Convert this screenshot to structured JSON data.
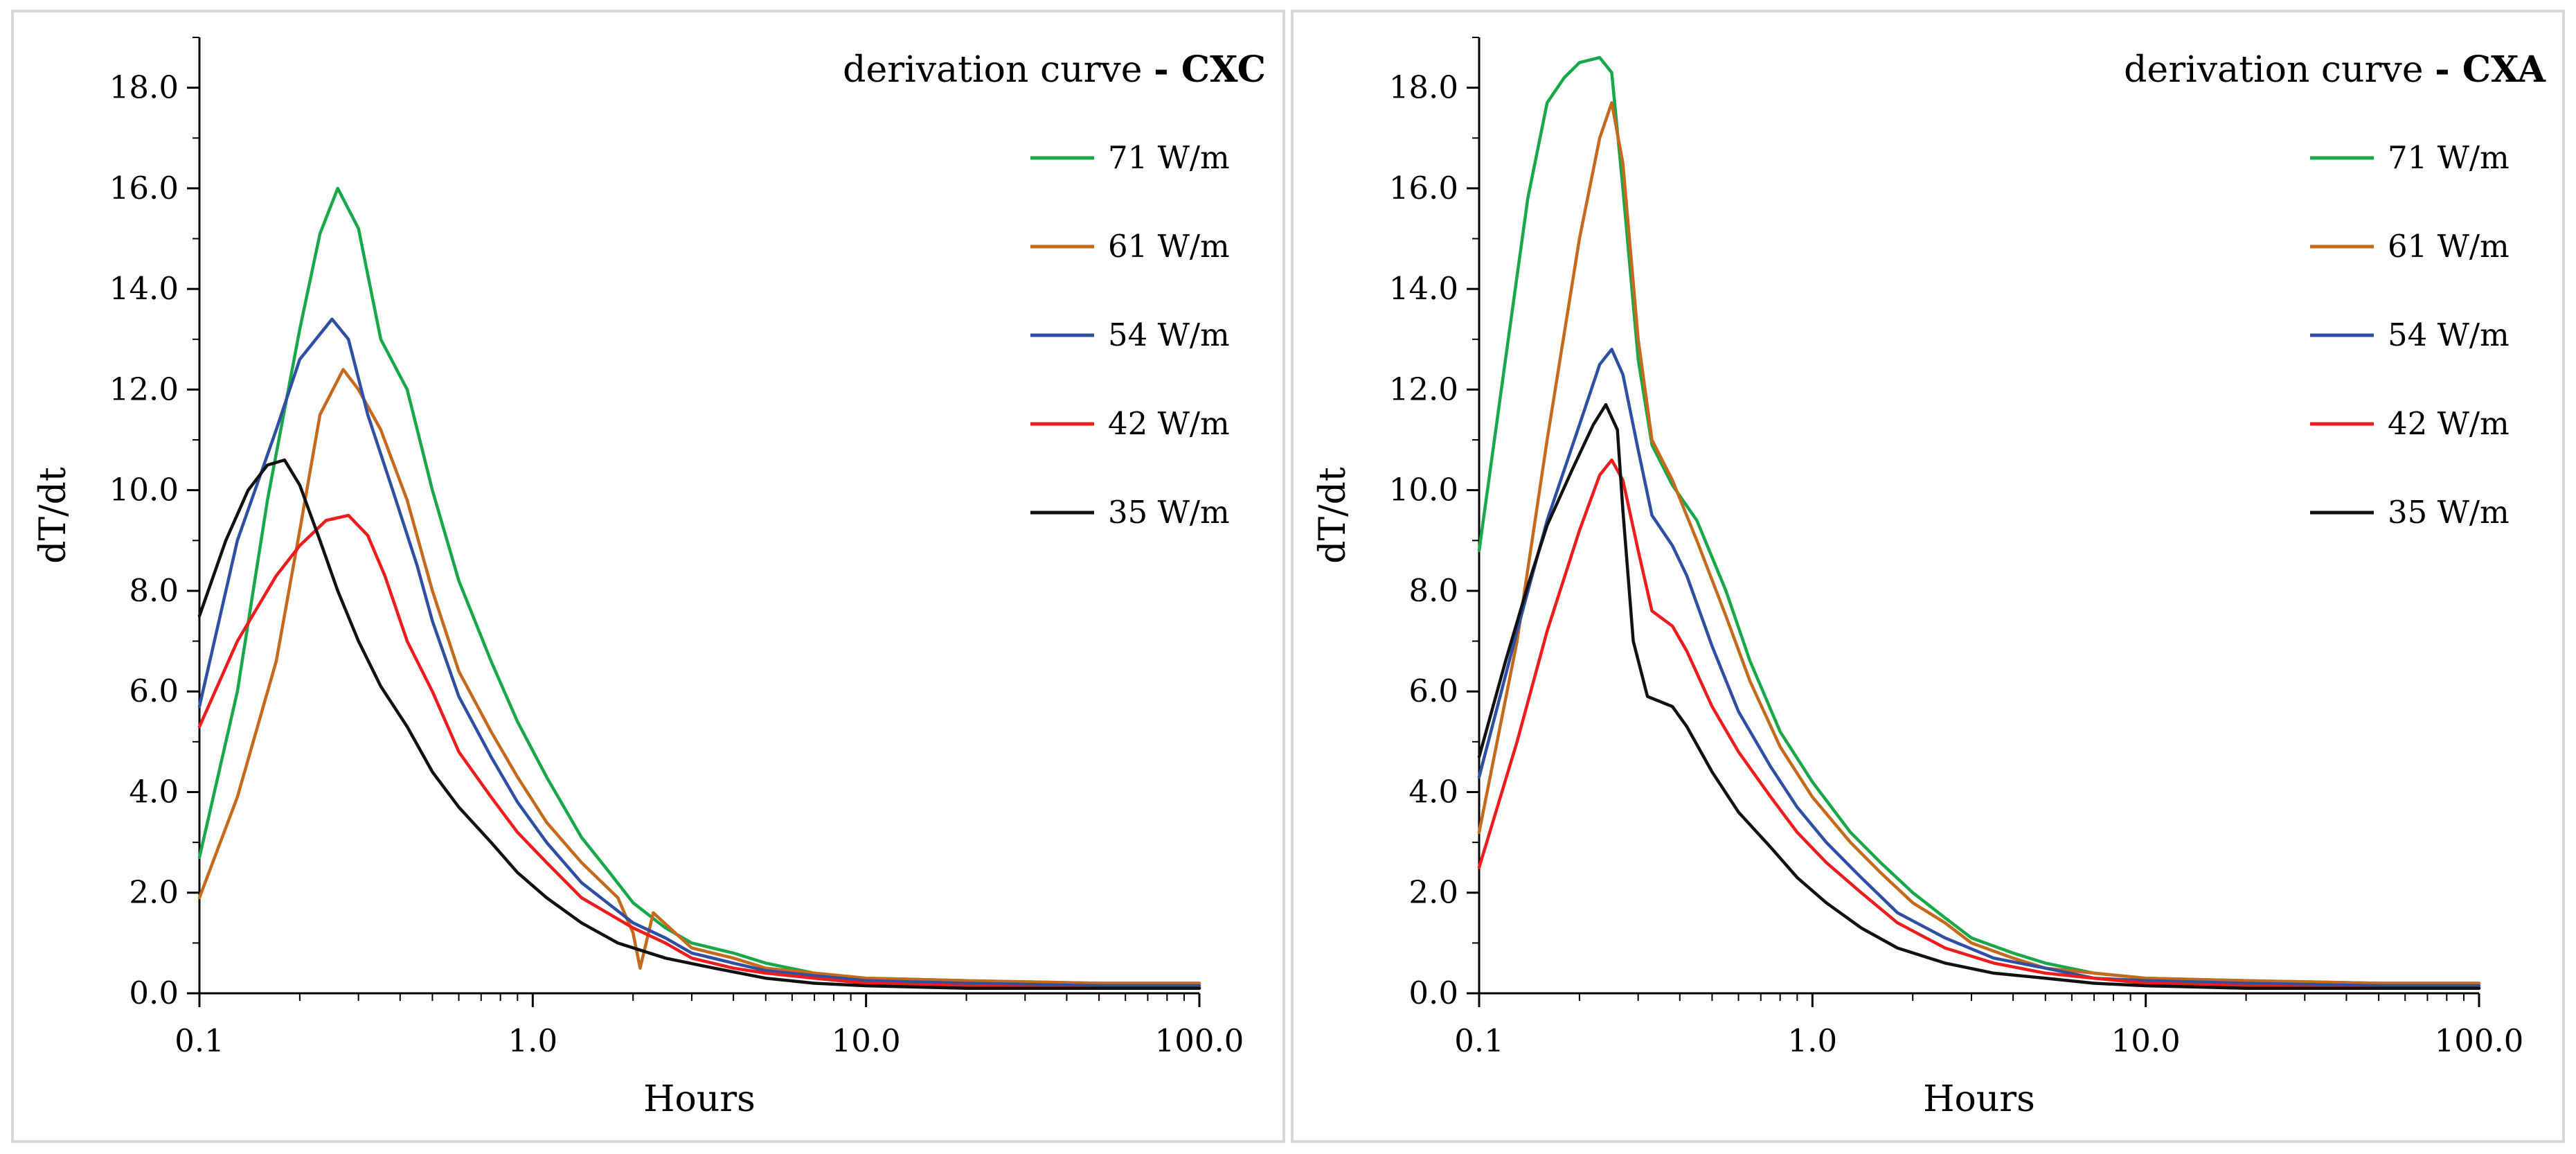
{
  "chart_data": [
    {
      "type": "line",
      "xscale": "log",
      "title": "derivation curve",
      "title_suffix": "- CXC",
      "xlabel": "Hours",
      "ylabel": "dT/dt",
      "xlim": [
        0.1,
        100
      ],
      "ylim": [
        0,
        19
      ],
      "x_ticks": [
        0.1,
        1,
        10,
        100
      ],
      "x_tick_labels": [
        "0.1",
        "1.0",
        "10.0",
        "100.0"
      ],
      "y_ticks": [
        0,
        2,
        4,
        6,
        8,
        10,
        12,
        14,
        16,
        18
      ],
      "y_tick_labels": [
        "0.0",
        "2.0",
        "4.0",
        "6.0",
        "8.0",
        "10.0",
        "12.0",
        "14.0",
        "16.0",
        "18.0"
      ],
      "series": [
        {
          "name": "71 W/m",
          "color": "#18a84a",
          "x": [
            0.1,
            0.13,
            0.16,
            0.2,
            0.23,
            0.26,
            0.3,
            0.35,
            0.42,
            0.5,
            0.6,
            0.75,
            0.9,
            1.1,
            1.4,
            1.7,
            2.0,
            2.5,
            3.0,
            4.0,
            5.0,
            7.0,
            10.0,
            20.0,
            50.0,
            100.0
          ],
          "y": [
            2.7,
            6.0,
            9.8,
            13.2,
            15.1,
            16.0,
            15.2,
            13.0,
            12.0,
            10.0,
            8.2,
            6.6,
            5.4,
            4.3,
            3.1,
            2.4,
            1.8,
            1.3,
            1.0,
            0.8,
            0.6,
            0.4,
            0.3,
            0.25,
            0.2,
            0.2
          ]
        },
        {
          "name": "61 W/m",
          "color": "#c56a1c",
          "x": [
            0.1,
            0.13,
            0.17,
            0.2,
            0.23,
            0.27,
            0.3,
            0.35,
            0.42,
            0.5,
            0.6,
            0.75,
            0.9,
            1.1,
            1.4,
            1.8,
            2.0,
            2.1,
            2.3,
            3.0,
            4.0,
            5.0,
            7.0,
            10.0,
            20.0,
            50.0,
            100.0
          ],
          "y": [
            1.9,
            3.9,
            6.6,
            9.2,
            11.5,
            12.4,
            12.0,
            11.2,
            9.8,
            8.0,
            6.4,
            5.2,
            4.3,
            3.4,
            2.6,
            1.9,
            1.2,
            0.5,
            1.6,
            0.9,
            0.7,
            0.5,
            0.4,
            0.3,
            0.25,
            0.2,
            0.2
          ]
        },
        {
          "name": "54 W/m",
          "color": "#2e4fa3",
          "x": [
            0.1,
            0.13,
            0.17,
            0.2,
            0.25,
            0.28,
            0.32,
            0.38,
            0.45,
            0.5,
            0.6,
            0.75,
            0.9,
            1.1,
            1.4,
            2.0,
            2.5,
            3.0,
            4.0,
            5.0,
            7.0,
            10.0,
            20.0,
            50.0,
            100.0
          ],
          "y": [
            5.7,
            9.0,
            11.2,
            12.6,
            13.4,
            13.0,
            11.5,
            10.0,
            8.5,
            7.4,
            5.9,
            4.7,
            3.8,
            3.0,
            2.2,
            1.4,
            1.1,
            0.8,
            0.6,
            0.45,
            0.35,
            0.25,
            0.2,
            0.15,
            0.15
          ]
        },
        {
          "name": "42 W/m",
          "color": "#ee1c1c",
          "x": [
            0.1,
            0.13,
            0.17,
            0.2,
            0.24,
            0.28,
            0.32,
            0.36,
            0.42,
            0.5,
            0.6,
            0.75,
            0.9,
            1.1,
            1.4,
            2.0,
            2.5,
            3.0,
            4.0,
            5.0,
            7.0,
            10.0,
            20.0,
            50.0,
            100.0
          ],
          "y": [
            5.3,
            7.0,
            8.3,
            8.9,
            9.4,
            9.5,
            9.1,
            8.3,
            7.0,
            6.0,
            4.8,
            3.9,
            3.2,
            2.6,
            1.9,
            1.3,
            1.0,
            0.7,
            0.5,
            0.4,
            0.3,
            0.2,
            0.15,
            0.1,
            0.1
          ]
        },
        {
          "name": "35 W/m",
          "color": "#111111",
          "x": [
            0.1,
            0.12,
            0.14,
            0.16,
            0.18,
            0.2,
            0.23,
            0.26,
            0.3,
            0.35,
            0.42,
            0.5,
            0.6,
            0.75,
            0.9,
            1.1,
            1.4,
            1.8,
            2.5,
            3.5,
            5.0,
            7.0,
            10.0,
            20.0,
            50.0,
            100.0
          ],
          "y": [
            7.5,
            9.0,
            10.0,
            10.5,
            10.6,
            10.1,
            9.0,
            8.0,
            7.0,
            6.1,
            5.3,
            4.4,
            3.7,
            3.0,
            2.4,
            1.9,
            1.4,
            1.0,
            0.7,
            0.5,
            0.3,
            0.2,
            0.15,
            0.1,
            0.1,
            0.1
          ]
        }
      ]
    },
    {
      "type": "line",
      "xscale": "log",
      "title": "derivation curve",
      "title_suffix": "- CXA",
      "xlabel": "Hours",
      "ylabel": "dT/dt",
      "xlim": [
        0.1,
        100
      ],
      "ylim": [
        0,
        19
      ],
      "x_ticks": [
        0.1,
        1,
        10,
        100
      ],
      "x_tick_labels": [
        "0.1",
        "1.0",
        "10.0",
        "100.0"
      ],
      "y_ticks": [
        0,
        2,
        4,
        6,
        8,
        10,
        12,
        14,
        16,
        18
      ],
      "y_tick_labels": [
        "0.0",
        "2.0",
        "4.0",
        "6.0",
        "8.0",
        "10.0",
        "12.0",
        "14.0",
        "16.0",
        "18.0"
      ],
      "series": [
        {
          "name": "71 W/m",
          "color": "#18a84a",
          "x": [
            0.1,
            0.12,
            0.14,
            0.16,
            0.18,
            0.2,
            0.23,
            0.25,
            0.27,
            0.3,
            0.33,
            0.38,
            0.45,
            0.55,
            0.65,
            0.8,
            1.0,
            1.3,
            1.6,
            2.0,
            2.5,
            3.0,
            4.0,
            5.0,
            7.0,
            10.0,
            20.0,
            50.0,
            100.0
          ],
          "y": [
            8.8,
            12.6,
            15.8,
            17.7,
            18.2,
            18.5,
            18.6,
            18.3,
            16.0,
            12.6,
            10.9,
            10.1,
            9.4,
            8.0,
            6.6,
            5.2,
            4.2,
            3.2,
            2.6,
            2.0,
            1.5,
            1.1,
            0.8,
            0.6,
            0.4,
            0.3,
            0.25,
            0.2,
            0.2
          ]
        },
        {
          "name": "61 W/m",
          "color": "#c56a1c",
          "x": [
            0.1,
            0.13,
            0.16,
            0.2,
            0.23,
            0.25,
            0.27,
            0.3,
            0.33,
            0.38,
            0.45,
            0.55,
            0.65,
            0.8,
            1.0,
            1.3,
            1.6,
            2.0,
            2.5,
            3.0,
            4.0,
            5.0,
            7.0,
            10.0,
            20.0,
            50.0,
            100.0
          ],
          "y": [
            3.2,
            7.0,
            11.0,
            15.0,
            17.0,
            17.7,
            16.5,
            13.0,
            11.0,
            10.2,
            9.0,
            7.5,
            6.2,
            4.9,
            3.9,
            3.0,
            2.4,
            1.8,
            1.4,
            1.0,
            0.7,
            0.5,
            0.4,
            0.3,
            0.25,
            0.2,
            0.2
          ]
        },
        {
          "name": "54 W/m",
          "color": "#2e4fa3",
          "x": [
            0.1,
            0.13,
            0.16,
            0.2,
            0.23,
            0.25,
            0.27,
            0.3,
            0.33,
            0.38,
            0.42,
            0.5,
            0.6,
            0.75,
            0.9,
            1.1,
            1.4,
            1.8,
            2.5,
            3.5,
            5.0,
            7.0,
            10.0,
            20.0,
            50.0,
            100.0
          ],
          "y": [
            4.3,
            7.2,
            9.4,
            11.3,
            12.5,
            12.8,
            12.3,
            10.8,
            9.5,
            8.9,
            8.3,
            6.9,
            5.6,
            4.5,
            3.7,
            3.0,
            2.3,
            1.6,
            1.1,
            0.7,
            0.5,
            0.3,
            0.25,
            0.2,
            0.15,
            0.15
          ]
        },
        {
          "name": "42 W/m",
          "color": "#ee1c1c",
          "x": [
            0.1,
            0.13,
            0.16,
            0.2,
            0.23,
            0.25,
            0.27,
            0.3,
            0.33,
            0.38,
            0.42,
            0.5,
            0.6,
            0.75,
            0.9,
            1.1,
            1.4,
            1.8,
            2.5,
            3.5,
            5.0,
            7.0,
            10.0,
            20.0,
            50.0,
            100.0
          ],
          "y": [
            2.5,
            5.0,
            7.2,
            9.2,
            10.3,
            10.6,
            10.2,
            8.8,
            7.6,
            7.3,
            6.8,
            5.7,
            4.8,
            3.9,
            3.2,
            2.6,
            2.0,
            1.4,
            0.9,
            0.6,
            0.4,
            0.3,
            0.2,
            0.15,
            0.1,
            0.1
          ]
        },
        {
          "name": "35 W/m",
          "color": "#111111",
          "x": [
            0.1,
            0.12,
            0.14,
            0.16,
            0.19,
            0.22,
            0.24,
            0.26,
            0.27,
            0.29,
            0.32,
            0.38,
            0.42,
            0.5,
            0.6,
            0.75,
            0.9,
            1.1,
            1.4,
            1.8,
            2.5,
            3.5,
            5.0,
            7.0,
            10.0,
            20.0,
            50.0,
            100.0
          ],
          "y": [
            4.7,
            6.6,
            8.1,
            9.3,
            10.4,
            11.3,
            11.7,
            11.2,
            9.6,
            7.0,
            5.9,
            5.7,
            5.3,
            4.4,
            3.6,
            2.9,
            2.3,
            1.8,
            1.3,
            0.9,
            0.6,
            0.4,
            0.3,
            0.2,
            0.15,
            0.1,
            0.1,
            0.1
          ]
        }
      ]
    }
  ]
}
